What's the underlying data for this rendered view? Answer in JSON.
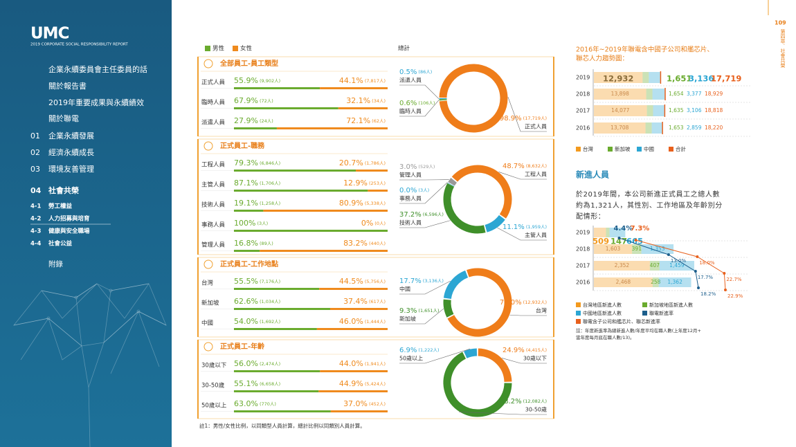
{
  "sidebar": {
    "logo": "UMC",
    "report": "2019 CORPORATE SOCIAL RESPONSIBILITY REPORT",
    "menu": [
      "企業永續委員會主任委員的話",
      "關於報告書",
      "2019年重要成果與永續績效",
      "關於聯電"
    ],
    "chapters": [
      {
        "no": "01",
        "label": "企業永續發展"
      },
      {
        "no": "02",
        "label": "經濟永續成長"
      },
      {
        "no": "03",
        "label": "環境友善管理"
      },
      {
        "no": "04",
        "label": "社會共榮"
      }
    ],
    "sub": [
      {
        "no": "4-1",
        "label": "勞工權益"
      },
      {
        "no": "4-2",
        "label": "人力招募與培育"
      },
      {
        "no": "4-3",
        "label": "健康與安全職場"
      },
      {
        "no": "4-4",
        "label": "社會公益"
      }
    ],
    "appendix": "附錄"
  },
  "page": {
    "number": "109",
    "chapter": "第四章．社會共榮"
  },
  "legend": {
    "male": "男性",
    "female": "女性",
    "total": "總計",
    "male_color": "#6aab2e",
    "female_color": "#ef8a1d"
  },
  "sections": [
    {
      "title": "全部員工-員工類型",
      "rows": [
        {
          "label": "正式人員",
          "male": 55.9,
          "male_label": "55.9%",
          "male_count": "(9,902人)",
          "female": 44.1,
          "female_label": "44.1%",
          "female_count": "(7,817人)"
        },
        {
          "label": "臨時人員",
          "male": 67.9,
          "male_label": "67.9%",
          "male_count": "(72人)",
          "female": 32.1,
          "female_label": "32.1%",
          "female_count": "(34人)"
        },
        {
          "label": "派遣人員",
          "male": 27.9,
          "male_label": "27.9%",
          "male_count": "(24人)",
          "female": 72.1,
          "female_label": "72.1%",
          "female_count": "(62人)"
        }
      ],
      "slices": [
        {
          "name": "派遣人員",
          "value": 0.5,
          "label": "0.5%",
          "count": "(86人)",
          "color": "#2ca6d3"
        },
        {
          "name": "臨時人員",
          "value": 0.6,
          "label": "0.6%",
          "count": "(106人)",
          "color": "#6aab2e"
        },
        {
          "name": "正式人員",
          "value": 98.9,
          "label": "98.9%",
          "count": "(17,719人)",
          "color": "#ef7d1a"
        }
      ]
    },
    {
      "title": "正式員工-職務",
      "rows": [
        {
          "label": "工程人員",
          "male": 79.3,
          "male_label": "79.3%",
          "male_count": "(6,846人)",
          "female": 20.7,
          "female_label": "20.7%",
          "female_count": "(1,786人)"
        },
        {
          "label": "主管人員",
          "male": 87.1,
          "male_label": "87.1%",
          "male_count": "(1,706人)",
          "female": 12.9,
          "female_label": "12.9%",
          "female_count": "(253人)"
        },
        {
          "label": "技術人員",
          "male": 19.1,
          "male_label": "19.1%",
          "male_count": "(1,258人)",
          "female": 80.9,
          "female_label": "80.9%",
          "female_count": "(5,338人)"
        },
        {
          "label": "事務人員",
          "male": 100,
          "male_label": "100%",
          "male_count": "(3人)",
          "female": 0,
          "female_label": "0%",
          "female_count": "(0人)"
        },
        {
          "label": "管理人員",
          "male": 16.8,
          "male_label": "16.8%",
          "male_count": "(89人)",
          "female": 83.2,
          "female_label": "83.2%",
          "female_count": "(440人)"
        }
      ],
      "slices": [
        {
          "name": "管理人員",
          "value": 3.0,
          "label": "3.0%",
          "count": "(529人)",
          "color": "#999999"
        },
        {
          "name": "事務人員",
          "value": 0.0,
          "label": "0.0%",
          "count": "(3人)",
          "color": "#2ca6d3"
        },
        {
          "name": "技術人員",
          "value": 37.2,
          "label": "37.2%",
          "count": "(6,596人)",
          "color": "#3f8f2a"
        },
        {
          "name": "主管人員",
          "value": 11.1,
          "label": "11.1%",
          "count": "(1,959人)",
          "color": "#2ca6d3"
        },
        {
          "name": "工程人員",
          "value": 48.7,
          "label": "48.7%",
          "count": "(8,632人)",
          "color": "#ef7d1a"
        }
      ]
    },
    {
      "title": "正式員工-工作地點",
      "rows": [
        {
          "label": "台灣",
          "male": 55.5,
          "male_label": "55.5%",
          "male_count": "(7,176人)",
          "female": 44.5,
          "female_label": "44.5%",
          "female_count": "(5,756人)"
        },
        {
          "label": "新加坡",
          "male": 62.6,
          "male_label": "62.6%",
          "male_count": "(1,034人)",
          "female": 37.4,
          "female_label": "37.4%",
          "female_count": "(617人)"
        },
        {
          "label": "中國",
          "male": 54.0,
          "male_label": "54.0%",
          "male_count": "(1,692人)",
          "female": 46.0,
          "female_label": "46.0%",
          "female_count": "(1,444人)"
        }
      ],
      "slices": [
        {
          "name": "中國",
          "value": 17.7,
          "label": "17.7%",
          "count": "(3,136人)",
          "color": "#2ca6d3"
        },
        {
          "name": "新加坡",
          "value": 9.3,
          "label": "9.3%",
          "count": "(1,651人)",
          "color": "#3f8f2a"
        },
        {
          "name": "台灣",
          "value": 73.0,
          "label": "73.0%",
          "count": "(12,932人)",
          "color": "#ef7d1a"
        }
      ]
    },
    {
      "title": "正式員工-年齡",
      "rows": [
        {
          "label": "30歲以下",
          "male": 56.0,
          "male_label": "56.0%",
          "male_count": "(2,474人)",
          "female": 44.0,
          "female_label": "44.0%",
          "female_count": "(1,941人)"
        },
        {
          "label": "30-50歲",
          "male": 55.1,
          "male_label": "55.1%",
          "male_count": "(6,658人)",
          "female": 44.9,
          "female_label": "44.9%",
          "female_count": "(5,424人)"
        },
        {
          "label": "50歲以上",
          "male": 63.0,
          "male_label": "63.0%",
          "male_count": "(770人)",
          "female": 37.0,
          "female_label": "37.0%",
          "female_count": "(452人)"
        }
      ],
      "slices": [
        {
          "name": "50歲以上",
          "value": 6.9,
          "label": "6.9%",
          "count": "(1,222人)",
          "color": "#2ca6d3"
        },
        {
          "name": "30歲以下",
          "value": 24.9,
          "label": "24.9%",
          "count": "(4,415人)",
          "color": "#ef7d1a"
        },
        {
          "name": "30-50歲",
          "value": 68.2,
          "label": "68.2%",
          "count": "(12,082人)",
          "color": "#3f8f2a"
        }
      ]
    }
  ],
  "footnote": "註1：男性/女性比例，以同類型人員計算，總計比例以同類別人員計算。",
  "trend_chart": {
    "title_lines": [
      "2016年~2019年聯電含中國子公司和艦芯片、",
      "聯芯人力趨勢圖："
    ],
    "years": [
      "2019",
      "2018",
      "2017",
      "2016"
    ],
    "series": [
      {
        "name": "台灣",
        "color": "#f39a1e",
        "values": [
          12932,
          13898,
          14077,
          13708
        ],
        "value_labels": [
          "12,932",
          "13,898",
          "14,077",
          "13,708"
        ]
      },
      {
        "name": "新加坡",
        "color": "#6aab2e",
        "values": [
          1651,
          1654,
          1635,
          1653
        ],
        "value_labels": [
          "1,651",
          "1,654",
          "1,635",
          "1,653"
        ]
      },
      {
        "name": "中國",
        "color": "#2ca6d3",
        "values": [
          3136,
          3377,
          3106,
          2859
        ],
        "value_labels": [
          "3,136",
          "3,377",
          "3,106",
          "2,859"
        ]
      },
      {
        "name": "合計",
        "color": "#e8601c",
        "values": [
          17719,
          18929,
          18818,
          18220
        ],
        "value_labels": [
          "17,719",
          "18,929",
          "18,818",
          "18,220"
        ]
      }
    ]
  },
  "new_hires": {
    "heading": "新進人員",
    "paragraph_lines": [
      "於2019年間，本公司新進正式員工之總人數",
      "約為1,321人，其性別、工作地區及年齡別分",
      "配情形："
    ],
    "years": [
      "2019",
      "2018",
      "2017",
      "2016"
    ],
    "series": [
      {
        "name": "台灣地區新進人數",
        "color": "#f39a1e",
        "values": [
          509,
          1603,
          2352,
          2468
        ],
        "value_labels": [
          "509",
          "1,603",
          "2,352",
          "2,468"
        ]
      },
      {
        "name": "新加坡地區新進人數",
        "color": "#6aab2e",
        "values": [
          147,
          391,
          407,
          258
        ]
      },
      {
        "name": "中國地區新進人數",
        "color": "#2ca6d3",
        "values": [
          665,
          1353,
          1459,
          1362
        ],
        "value_labels": [
          "665",
          "1,353",
          "1,459",
          "1,362"
        ]
      }
    ],
    "rates": [
      {
        "name": "聯電新進率",
        "color": "#1c5e8c",
        "values": [
          4.4,
          13.0,
          17.7,
          18.2
        ],
        "value_labels": [
          "4.4%",
          "13.0%",
          "17.7%",
          "18.2%"
        ]
      },
      {
        "name": "聯電含子公司和艦芯片、聯芯新進率",
        "color": "#e8601c",
        "values": [
          7.3,
          18.0,
          22.7,
          22.9
        ],
        "value_labels": [
          "7.3%",
          "18.0%",
          "22.7%",
          "22.9%"
        ]
      }
    ],
    "note_lines": [
      "註：年度新進率為總新進人數/年度平均在職人數(上年度12月+",
      "當年度每月底在職人數/13)。"
    ]
  }
}
